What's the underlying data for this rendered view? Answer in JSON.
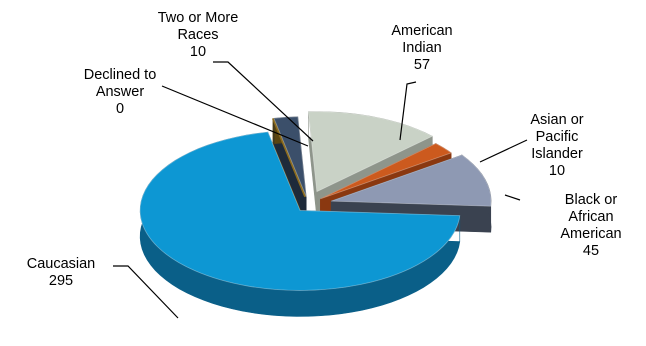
{
  "chart_data": {
    "type": "pie",
    "style": "3d-exploded",
    "legend": "none",
    "categories": [
      "American Indian",
      "Asian or Pacific Islander",
      "Black or African American",
      "Caucasian",
      "Declined to Answer",
      "Two or More Races"
    ],
    "values": [
      57,
      10,
      45,
      295,
      0,
      10
    ],
    "label_lines": [
      [
        "American",
        "Indian",
        "57"
      ],
      [
        "Asian or",
        "Pacific",
        "Islander",
        "10"
      ],
      [
        "Black or",
        "African",
        "American",
        "45"
      ],
      [
        "Caucasian",
        "295"
      ],
      [
        "Declined to",
        "Answer",
        "0"
      ],
      [
        "Two or More",
        "Races",
        "10"
      ]
    ],
    "colors": [
      "#c9d2c6",
      "#cc5a1e",
      "#8e99b3",
      "#0d97d3",
      "#8a6a1e",
      "#3b4f6a"
    ],
    "side_colors": [
      "#8e958b",
      "#8a3810",
      "#3a4250",
      "#0a5f88",
      "#5a4410",
      "#1e2a3a"
    ]
  }
}
